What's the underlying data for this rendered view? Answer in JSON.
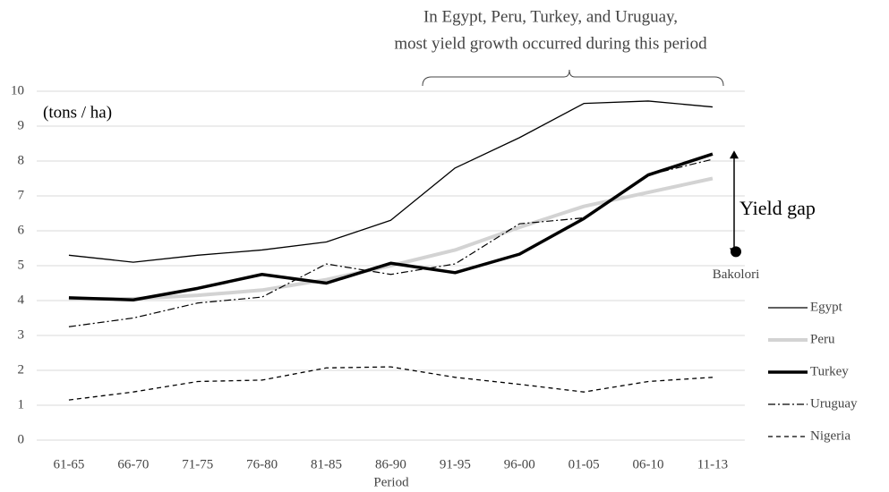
{
  "chart_data": {
    "type": "line",
    "annotations": [
      "In Egypt, Peru, Turkey, and Uruguay,",
      "most yield growth occurred during this period",
      "(tons / ha)",
      "Yield gap"
    ],
    "x_label": "Period",
    "categories": [
      "61-65",
      "66-70",
      "71-75",
      "76-80",
      "81-85",
      "86-90",
      "91-95",
      "96-00",
      "01-05",
      "06-10",
      "11-13"
    ],
    "series": [
      {
        "name": "Egypt",
        "color": "#000000",
        "line_style": "solid",
        "values": [
          5.3,
          5.1,
          5.3,
          5.45,
          5.68,
          6.3,
          7.8,
          8.67,
          9.65,
          9.72,
          9.55
        ]
      },
      {
        "name": "Peru",
        "color": "#d3d3d3",
        "line_style": "thick",
        "values": [
          4.05,
          4.05,
          4.15,
          4.3,
          4.6,
          5.0,
          5.45,
          6.1,
          6.7,
          7.1,
          7.5
        ]
      },
      {
        "name": "Turkey",
        "color": "#000000",
        "line_style": "bold",
        "values": [
          4.08,
          4.02,
          4.35,
          4.75,
          4.5,
          5.07,
          4.8,
          5.33,
          6.35,
          7.6,
          8.2
        ]
      },
      {
        "name": "Uruguay",
        "color": "#000000",
        "line_style": "dashdot",
        "values": [
          3.25,
          3.5,
          3.93,
          4.1,
          5.05,
          4.75,
          5.05,
          6.2,
          6.37,
          7.6,
          8.05
        ]
      },
      {
        "name": "Nigeria",
        "color": "#000000",
        "line_style": "dashed",
        "values": [
          1.15,
          1.38,
          1.68,
          1.72,
          2.07,
          2.1,
          1.8,
          1.6,
          1.38,
          1.68,
          1.8
        ]
      }
    ],
    "point": {
      "name": "Bakolori",
      "color": "#000000",
      "value": 5.4
    },
    "ylim": [
      0,
      10
    ],
    "yticks": [
      0,
      1,
      2,
      3,
      4,
      5,
      6,
      7,
      8,
      9,
      10
    ],
    "grid": true,
    "legend": "lower right"
  }
}
